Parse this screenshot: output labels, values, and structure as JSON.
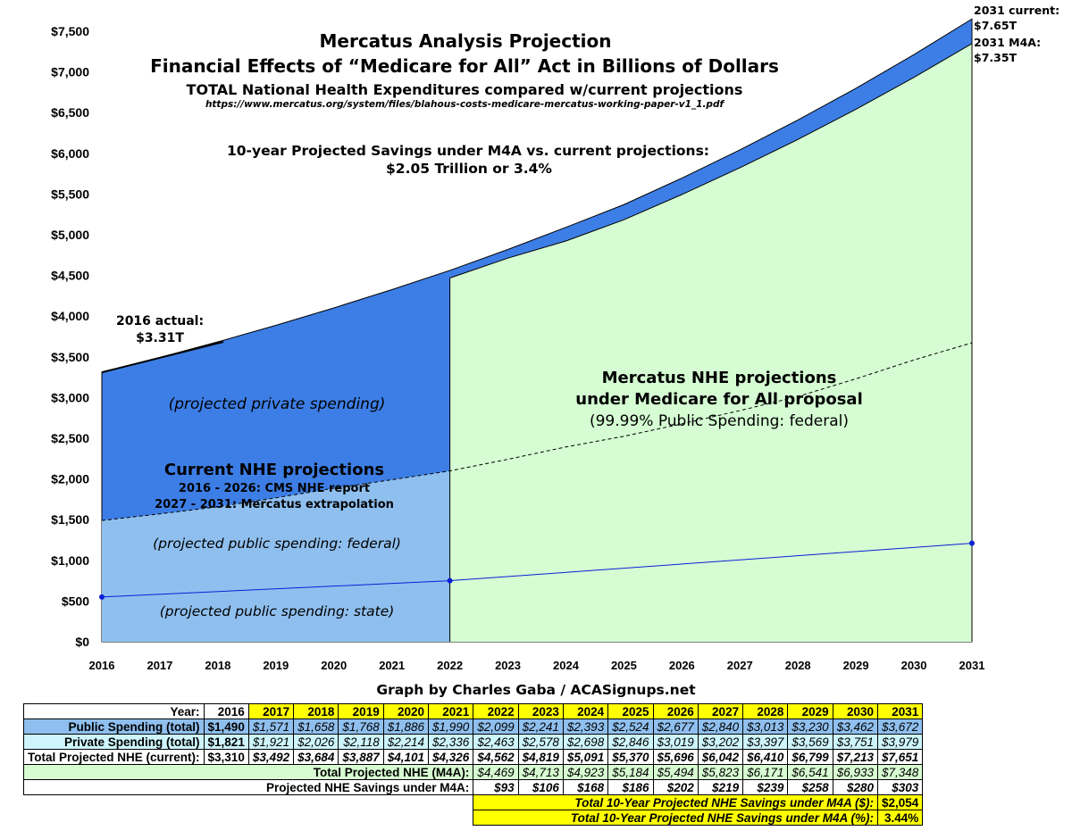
{
  "title": {
    "line1": "Mercatus Analysis Projection",
    "line2": "Financial Effects of “Medicare for All” Act in Billions of Dollars",
    "line3": "TOTAL National Health Expenditures compared w/current projections",
    "url": "https://www.mercatus.org/system/files/blahous-costs-medicare-mercatus-working-paper-v1_1.pdf"
  },
  "annotations": {
    "savings_line1": "10-year Projected Savings under M4A vs. current projections:",
    "savings_line2": "$2.05 Trillion or 3.4%",
    "actual_2016_line1": "2016 actual:",
    "actual_2016_line2": "$3.31T",
    "end_current_line1": "2031 current:",
    "end_current_line2": "$7.65T",
    "end_m4a_line1": "2031 M4A:",
    "end_m4a_line2": "$7.35T",
    "private_spending": "(projected private spending)",
    "current_nhe_line1": "Current NHE projections",
    "current_nhe_line2": "2016 - 2026: CMS NHE report",
    "current_nhe_line3": "2027 - 2031: Mercatus extrapolation",
    "federal_spending": "(projected public spending: federal)",
    "state_spending": "(projected public spending: state)",
    "m4a_line1": "Mercatus NHE projections",
    "m4a_line2": "under Medicare for All proposal",
    "m4a_line3": "(99.99% Public Spending: federal)",
    "credit": "Graph by Charles Gaba / ACASignups.net"
  },
  "colors": {
    "private": "#3d7ee6",
    "public_current": "#8fbfee",
    "m4a": "#d5fcd3",
    "state_line": "#0a1fd6",
    "table_yellow": "#ffff00"
  },
  "chart_data": {
    "type": "area",
    "x": [
      2016,
      2017,
      2018,
      2019,
      2020,
      2021,
      2022,
      2023,
      2024,
      2025,
      2026,
      2027,
      2028,
      2029,
      2030,
      2031
    ],
    "series": [
      {
        "name": "Public Spending (total)",
        "values": [
          1490,
          1571,
          1658,
          1768,
          1886,
          1990,
          2099,
          2241,
          2393,
          2524,
          2677,
          2840,
          3013,
          3230,
          3462,
          3672
        ]
      },
      {
        "name": "Private Spending (total)",
        "values": [
          1821,
          1921,
          2026,
          2118,
          2214,
          2336,
          2463,
          2578,
          2698,
          2846,
          3019,
          3202,
          3397,
          3569,
          3751,
          3979
        ]
      },
      {
        "name": "Total Projected NHE (current)",
        "values": [
          3310,
          3492,
          3684,
          3887,
          4101,
          4326,
          4562,
          4819,
          5091,
          5370,
          5696,
          6042,
          6410,
          6799,
          7213,
          7651
        ]
      },
      {
        "name": "Total Projected NHE (M4A)",
        "values": [
          null,
          null,
          null,
          null,
          null,
          null,
          4469,
          4713,
          4923,
          5184,
          5494,
          5823,
          6171,
          6541,
          6933,
          7348
        ]
      }
    ],
    "state_spending_points": [
      {
        "x": 2016,
        "y": 550
      },
      {
        "x": 2022,
        "y": 750
      },
      {
        "x": 2031,
        "y": 1210
      }
    ],
    "ylim": [
      0,
      7500
    ],
    "yticks": [
      0,
      500,
      1000,
      1500,
      2000,
      2500,
      3000,
      3500,
      4000,
      4500,
      5000,
      5500,
      6000,
      6500,
      7000,
      7500
    ],
    "ytick_labels": [
      "$0",
      "$500",
      "$1,000",
      "$1,500",
      "$2,000",
      "$2,500",
      "$3,000",
      "$3,500",
      "$4,000",
      "$4,500",
      "$5,000",
      "$5,500",
      "$6,000",
      "$6,500",
      "$7,000",
      "$7,500"
    ],
    "xtick_labels": [
      "2016",
      "2017",
      "2018",
      "2019",
      "2020",
      "2021",
      "2022",
      "2023",
      "2024",
      "2025",
      "2026",
      "2027",
      "2028",
      "2029",
      "2030",
      "2031"
    ],
    "grid": false
  },
  "table": {
    "year_label": "Year:",
    "years": [
      "2016",
      "2017",
      "2018",
      "2019",
      "2020",
      "2021",
      "2022",
      "2023",
      "2024",
      "2025",
      "2026",
      "2027",
      "2028",
      "2029",
      "2030",
      "2031"
    ],
    "rows": [
      {
        "label": "Public Spending (total)",
        "values": [
          "$1,490",
          "$1,571",
          "$1,658",
          "$1,768",
          "$1,886",
          "$1,990",
          "$2,099",
          "$2,241",
          "$2,393",
          "$2,524",
          "$2,677",
          "$2,840",
          "$3,013",
          "$3,230",
          "$3,462",
          "$3,672"
        ]
      },
      {
        "label": "Private Spending (total)",
        "values": [
          "$1,821",
          "$1,921",
          "$2,026",
          "$2,118",
          "$2,214",
          "$2,336",
          "$2,463",
          "$2,578",
          "$2,698",
          "$2,846",
          "$3,019",
          "$3,202",
          "$3,397",
          "$3,569",
          "$3,751",
          "$3,979"
        ]
      },
      {
        "label": "Total Projected NHE (current):",
        "values": [
          "$3,310",
          "$3,492",
          "$3,684",
          "$3,887",
          "$4,101",
          "$4,326",
          "$4,562",
          "$4,819",
          "$5,091",
          "$5,370",
          "$5,696",
          "$6,042",
          "$6,410",
          "$6,799",
          "$7,213",
          "$7,651"
        ]
      }
    ],
    "m4a_row": {
      "label": "Total Projected NHE (M4A):",
      "values": [
        "$4,469",
        "$4,713",
        "$4,923",
        "$5,184",
        "$5,494",
        "$5,823",
        "$6,171",
        "$6,541",
        "$6,933",
        "$7,348"
      ]
    },
    "savings_row": {
      "label": "Projected NHE Savings under M4A:",
      "values": [
        "$93",
        "$106",
        "$168",
        "$186",
        "$202",
        "$219",
        "$239",
        "$258",
        "$280",
        "$303"
      ]
    },
    "total_savings_dollars": {
      "label": "Total 10-Year Projected NHE Savings under M4A ($):",
      "value": "$2,054"
    },
    "total_savings_percent": {
      "label": "Total 10-Year Projected NHE Savings under M4A (%):",
      "value": "3.44%"
    }
  }
}
